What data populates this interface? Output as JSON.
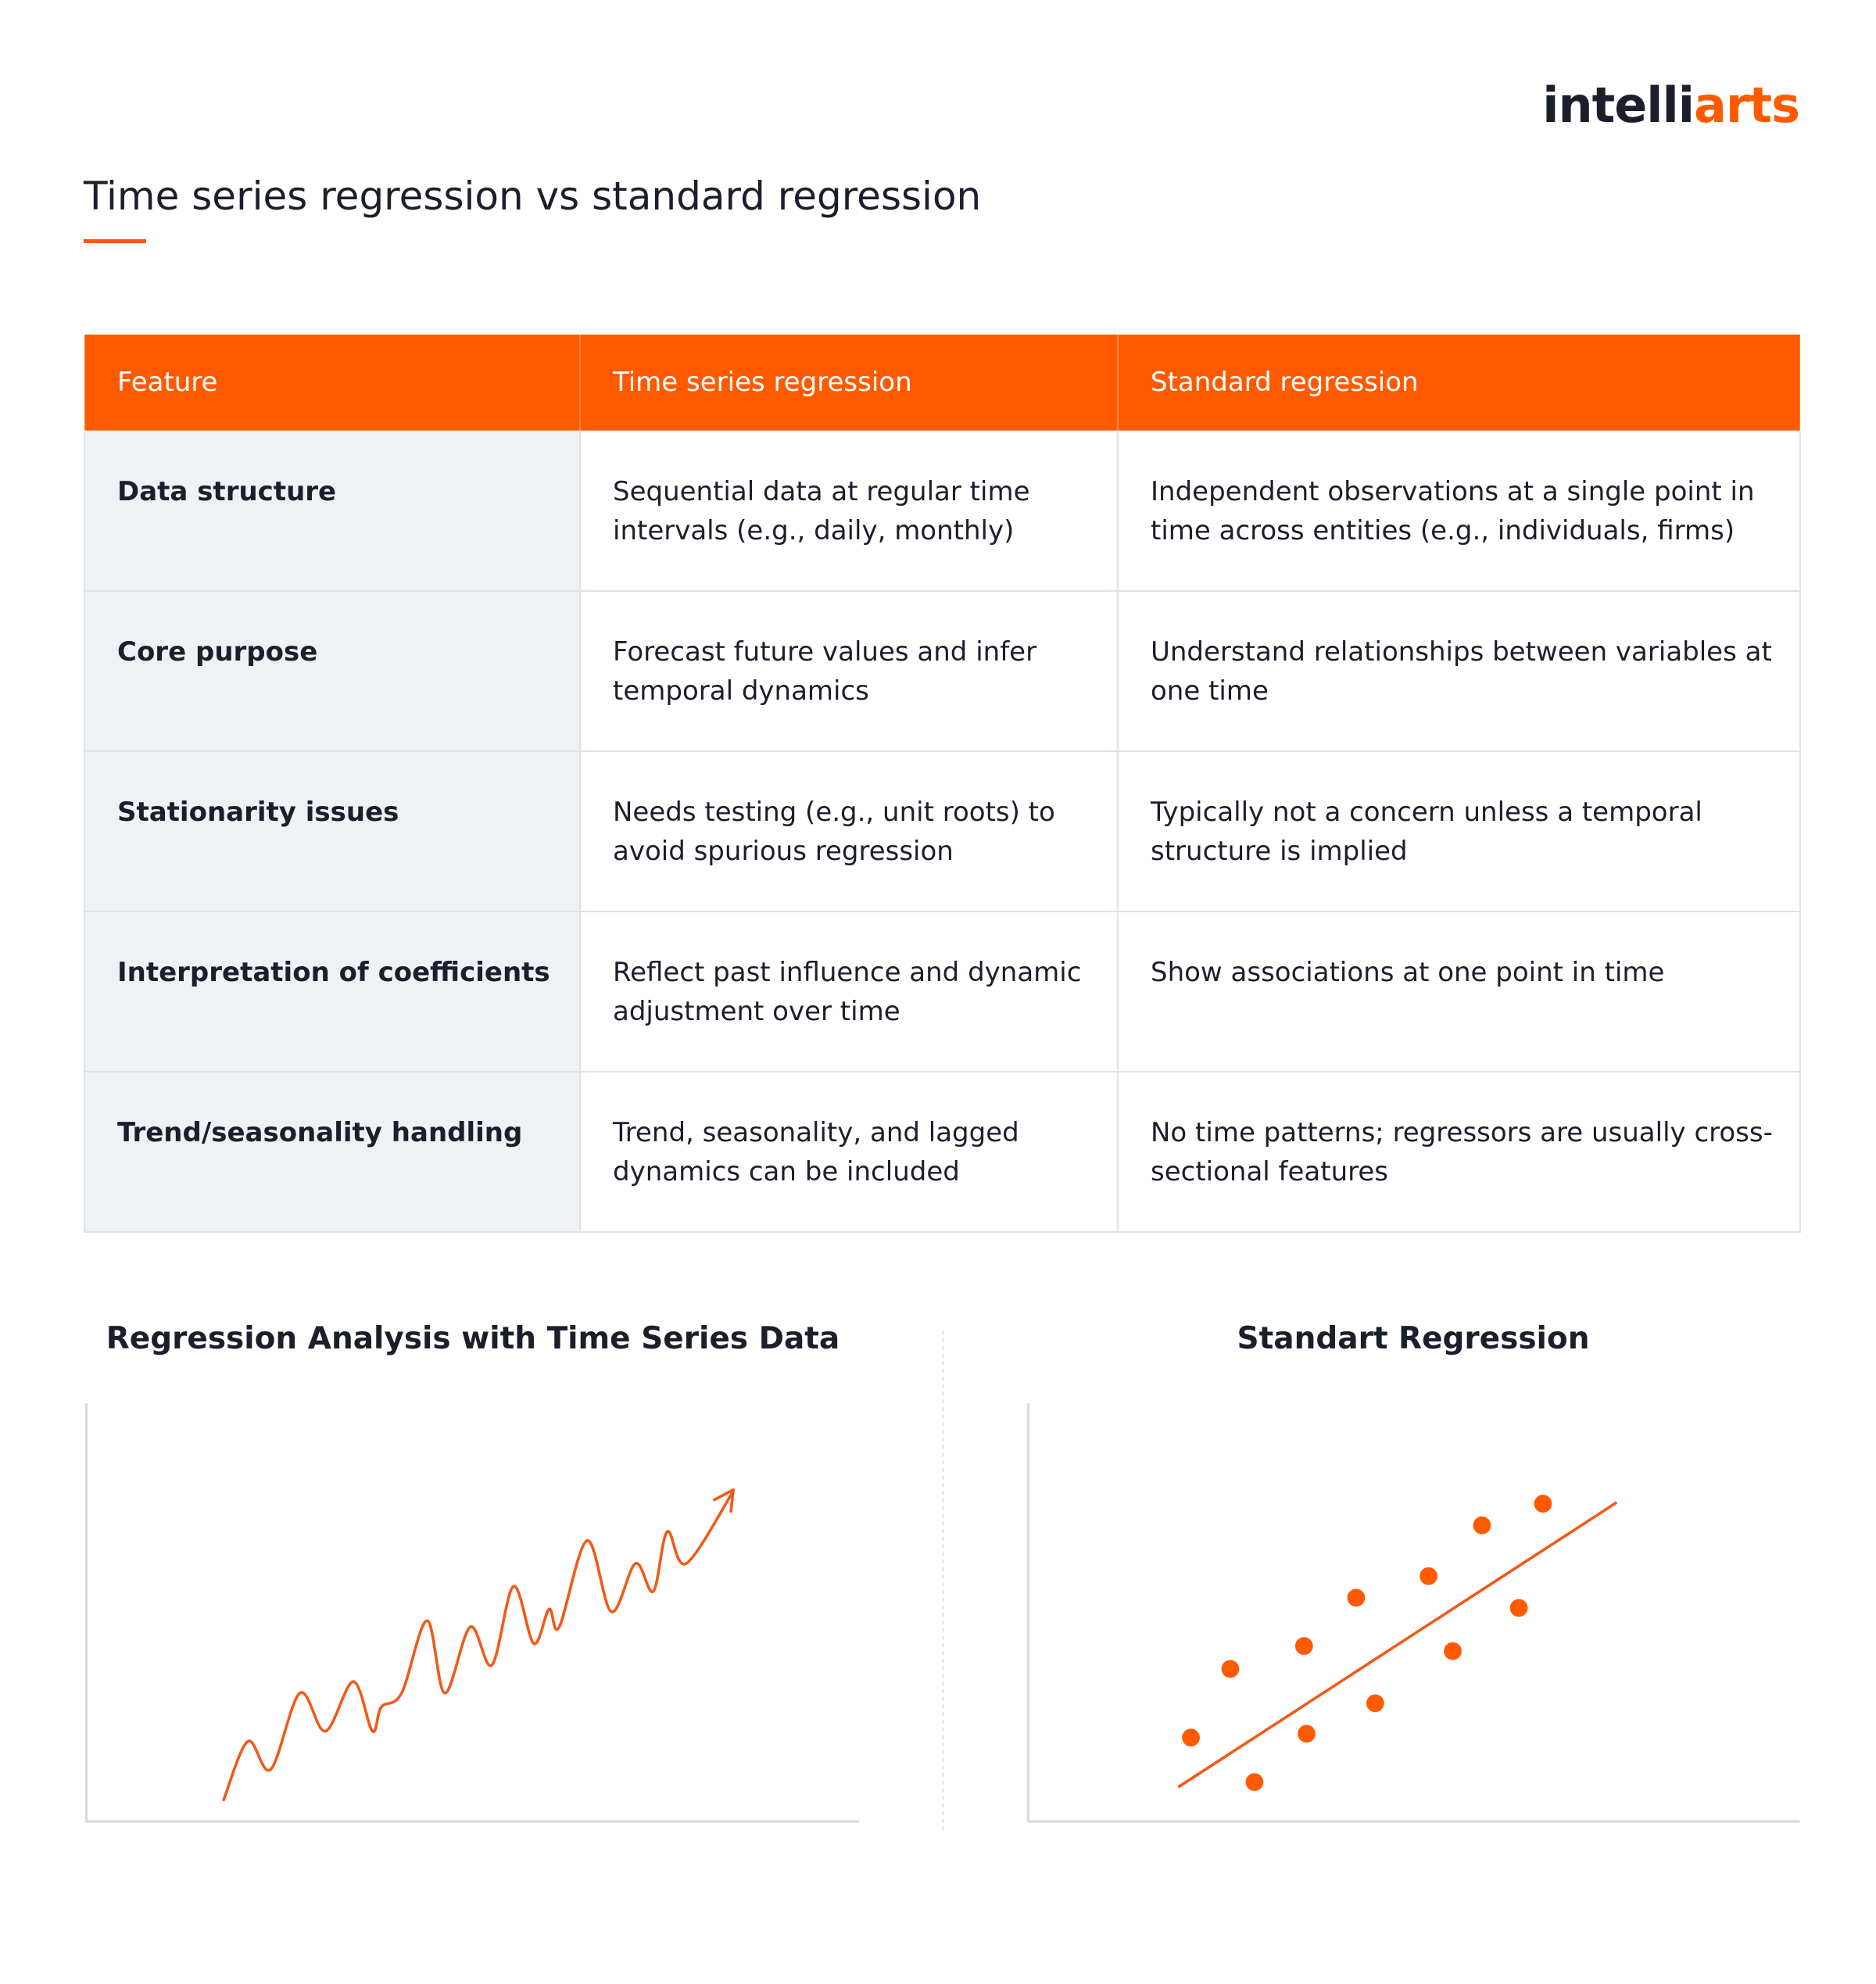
{
  "header": {
    "logo": [
      "intelli",
      "arts"
    ],
    "title": "Time series regression vs standard regression"
  },
  "table": {
    "columns": [
      "Feature",
      "Time series regression",
      "Standard regression"
    ],
    "rows": [
      [
        "Data structure",
        "Sequential data at regular time intervals (e.g., daily, monthly)",
        "Independent observations at a single point in time across entities (e.g., individuals, firms)"
      ],
      [
        "Core purpose",
        "Forecast future values and infer temporal dynamics",
        "Understand relationships between variables at one time"
      ],
      [
        "Stationarity issues",
        "Needs testing (e.g., unit roots) to avoid spurious regression",
        "Typically not a concern unless a temporal structure is implied"
      ],
      [
        "Interpretation of coefficients",
        "Reflect past influence and dynamic adjustment over time",
        "Show associations at one point in time"
      ],
      [
        "Trend/seasonality handling",
        "Trend, seasonality, and lagged dynamics can be included",
        "No time patterns; regressors are usually cross-sectional features"
      ]
    ]
  },
  "illustrations": [
    {
      "title": "Regression Analysis with Time Series Data"
    },
    {
      "title": "Standart Regression"
    }
  ]
}
